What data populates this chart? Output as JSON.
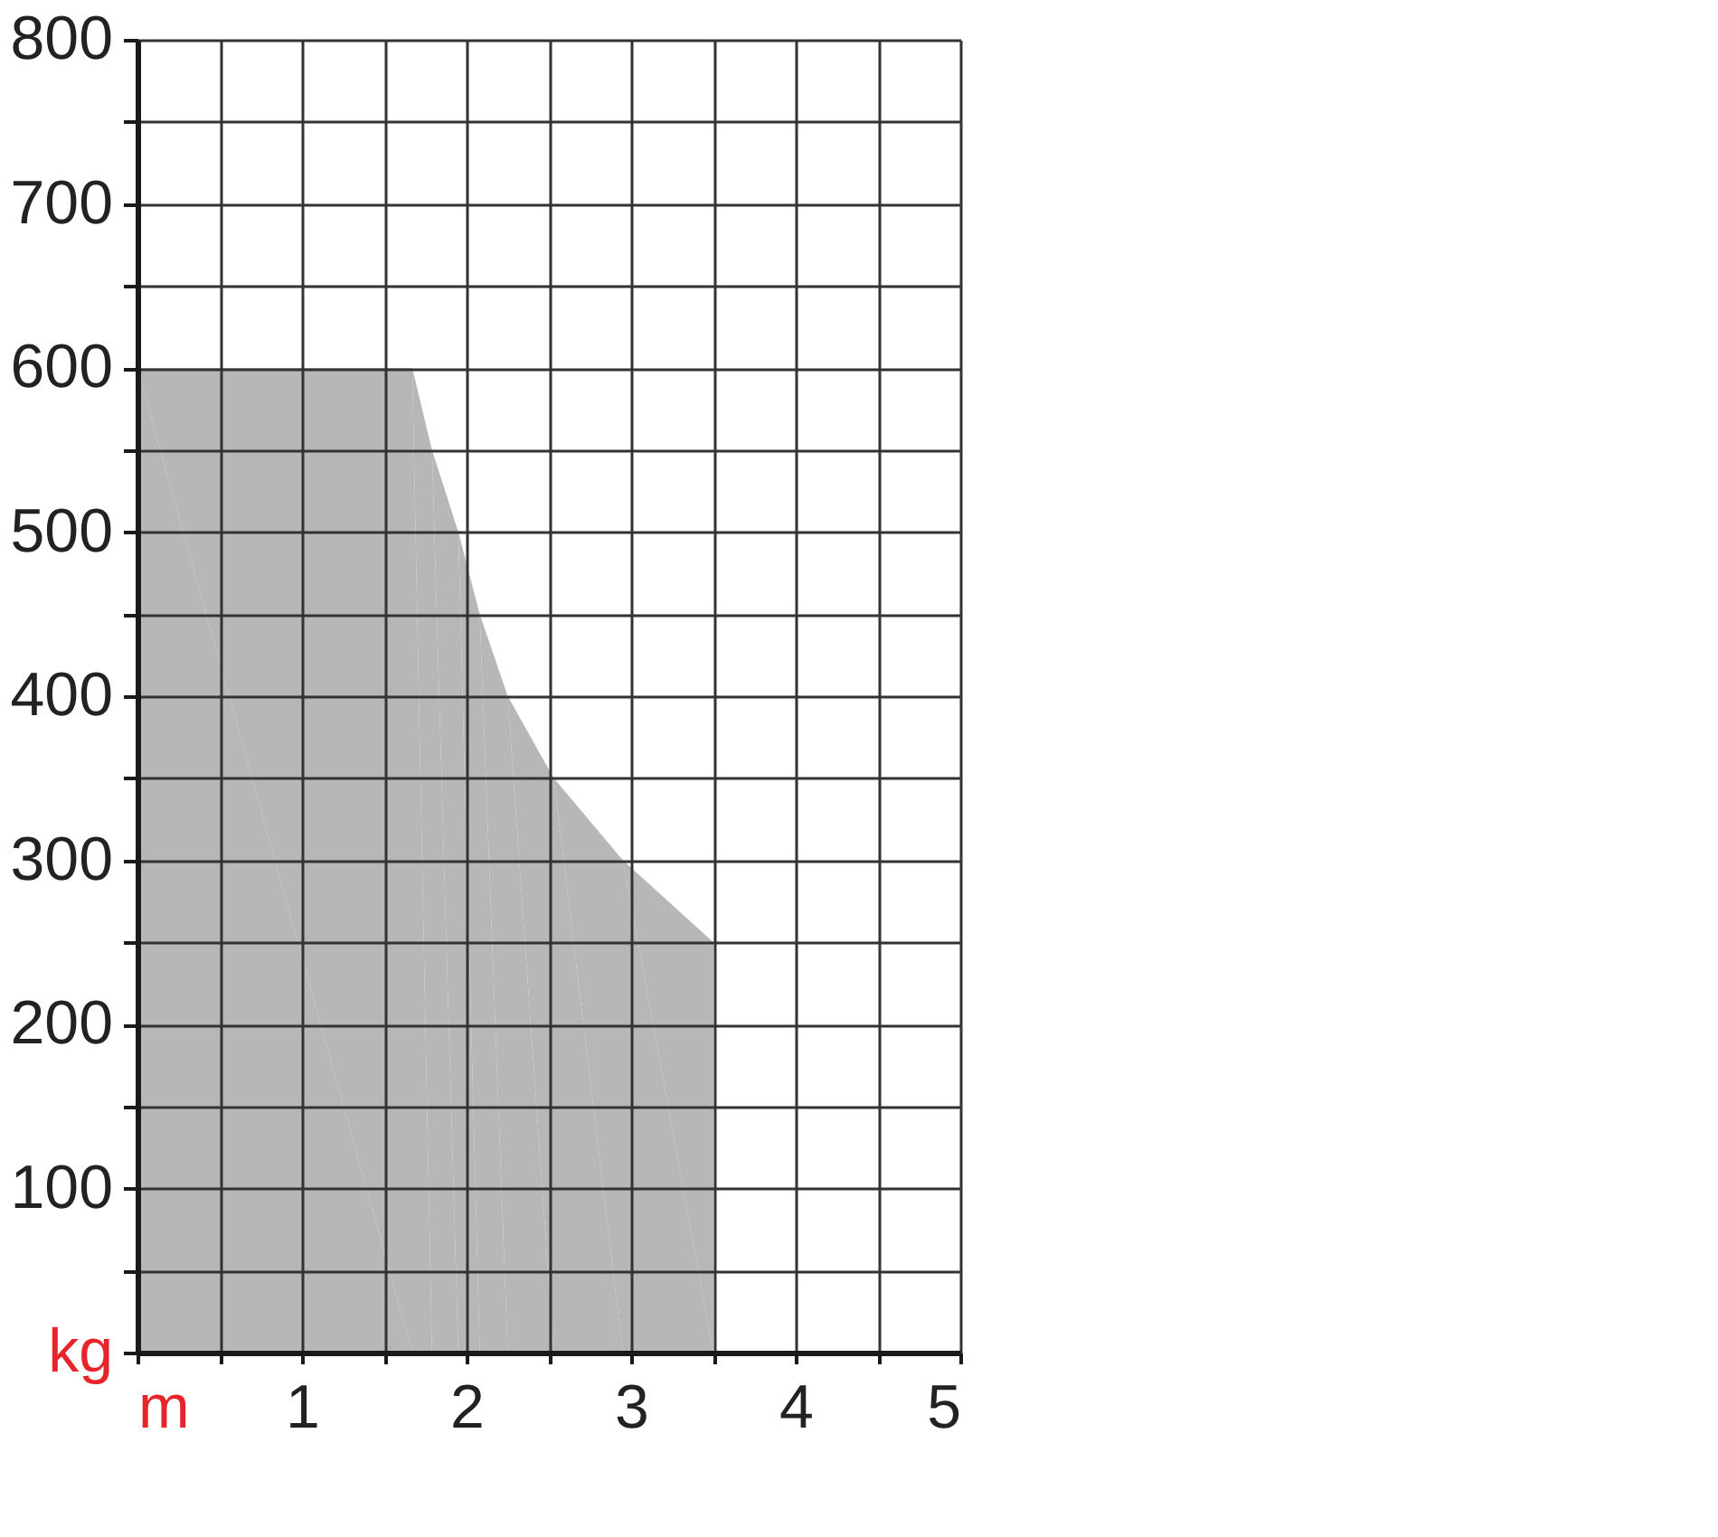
{
  "chart_data": {
    "type": "area",
    "x": [
      0,
      1.67,
      1.79,
      1.95,
      2.08,
      2.25,
      2.53,
      2.95,
      3.5,
      3.5
    ],
    "series": [
      {
        "color": "#b7b7b9",
        "values": [
          600,
          600,
          550,
          500,
          450,
          400,
          350,
          300,
          250,
          0
        ]
      }
    ],
    "xlim": [
      0,
      5
    ],
    "ylim": [
      0,
      800
    ],
    "xticks": [
      {
        "value": 0,
        "label": "m"
      },
      {
        "value": 0.5,
        "label": null
      },
      1,
      {
        "value": 1.5,
        "label": null
      },
      2,
      {
        "value": 2.5,
        "label": null
      },
      3,
      {
        "value": 3.5,
        "label": null
      },
      4,
      {
        "value": 4.5,
        "label": null
      },
      5
    ],
    "yticks": [
      {
        "value": 0,
        "label": "kg"
      },
      {
        "value": 50,
        "label": null
      },
      100,
      {
        "value": 150,
        "label": null
      },
      200,
      {
        "value": 250,
        "label": null
      },
      300,
      {
        "value": 350,
        "label": null
      },
      400,
      {
        "value": 450,
        "label": null
      },
      500,
      {
        "value": 550,
        "label": null
      },
      600,
      {
        "value": 650,
        "label": null
      },
      700,
      {
        "value": 750,
        "label": null
      },
      800
    ],
    "grid": true
  }
}
